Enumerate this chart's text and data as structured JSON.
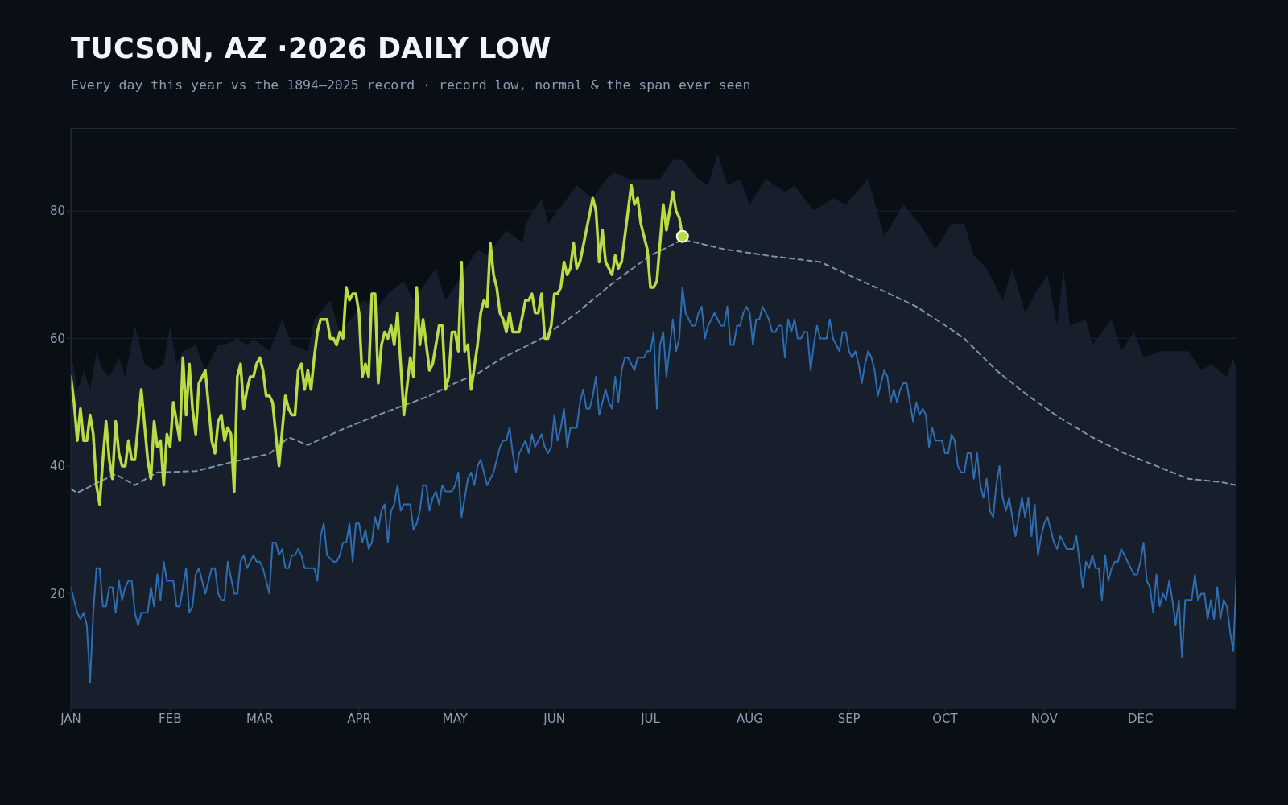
{
  "chart_data": {
    "type": "line",
    "title": "TUCSON, AZ ·2026 DAILY LOW",
    "subtitle": "Every day this year vs the 1894–2025 record · record low, normal & the span ever seen",
    "xlim": [
      "--01-01",
      "--12-31"
    ],
    "xticks": [
      {
        "value": "--01-01",
        "label": "JAN"
      },
      {
        "value": "--02-01",
        "label": "FEB"
      },
      {
        "value": "--03-01",
        "label": "MAR"
      },
      {
        "value": "--04-01",
        "label": "APR"
      },
      {
        "value": "--05-01",
        "label": "MAY"
      },
      {
        "value": "--06-01",
        "label": "JUN"
      },
      {
        "value": "--07-01",
        "label": "JUL"
      },
      {
        "value": "--08-01",
        "label": "AUG"
      },
      {
        "value": "--09-01",
        "label": "SEP"
      },
      {
        "value": "--10-01",
        "label": "OCT"
      },
      {
        "value": "--11-01",
        "label": "NOV"
      },
      {
        "value": "--12-01",
        "label": "DEC"
      }
    ],
    "ylim": [
      2,
      93
    ],
    "yticks": [
      20,
      40,
      60,
      80
    ],
    "grid": "y",
    "series": [
      {
        "type": "area",
        "color": "#161f2b",
        "x": [
          "--01-01",
          "--01-03",
          "--01-04",
          "--01-05",
          "--01-07",
          "--01-09",
          "--01-11",
          "--01-13",
          "--01-16",
          "--01-18",
          "--01-21",
          "--01-24",
          "--01-27",
          "--01-30",
          "--02-01",
          "--02-03",
          "--02-05",
          "--02-09",
          "--02-12",
          "--02-16",
          "--02-18",
          "--02-22",
          "--02-25",
          "--02-27",
          "--03-04",
          "--03-08",
          "--03-11",
          "--03-16",
          "--03-18",
          "--03-23",
          "--03-26",
          "--03-31",
          "--04-02",
          "--04-07",
          "--04-10",
          "--04-15",
          "--04-18",
          "--04-25",
          "--04-28",
          "--05-02",
          "--05-08",
          "--05-11",
          "--05-17",
          "--05-22",
          "--05-23",
          "--05-28",
          "--05-30",
          "--06-02",
          "--06-08",
          "--06-13",
          "--06-17",
          "--06-20",
          "--06-24",
          "--06-29",
          "--07-04",
          "--07-08",
          "--07-11",
          "--07-16",
          "--07-19",
          "--07-22",
          "--07-25",
          "--07-29",
          "--08-01",
          "--08-06",
          "--08-12",
          "--08-15",
          "--08-21",
          "--08-27",
          "--08-31",
          "--09-07",
          "--09-12",
          "--09-18",
          "--09-23",
          "--09-28",
          "--10-03",
          "--10-07",
          "--10-10",
          "--10-14",
          "--10-19",
          "--10-22",
          "--10-26",
          "--10-29",
          "--11-02",
          "--11-05",
          "--11-07",
          "--11-09",
          "--11-14",
          "--11-16",
          "--11-22",
          "--11-25",
          "--11-29",
          "--12-02",
          "--12-07",
          "--12-12",
          "--12-16",
          "--12-20",
          "--12-23",
          "--12-28",
          "--12-30",
          "--12-31"
        ],
        "values": [
          58,
          52,
          53,
          55,
          52,
          58,
          55,
          54,
          57,
          54,
          62,
          56,
          55,
          56,
          62,
          56,
          58,
          59,
          55,
          59,
          59,
          60,
          59,
          60,
          58,
          63,
          59,
          58,
          63,
          66,
          61,
          64,
          66,
          65,
          67,
          69,
          66,
          71,
          66,
          69,
          74,
          73,
          77,
          75,
          78,
          82,
          78,
          80,
          84,
          82,
          85,
          86,
          85,
          85,
          85,
          88,
          88,
          85,
          84,
          89,
          84,
          85,
          81,
          85,
          83,
          84,
          80,
          82,
          81,
          85,
          76,
          81,
          78,
          74,
          78,
          78,
          73,
          71,
          66,
          71,
          64,
          67,
          70,
          62,
          71,
          62,
          63,
          59,
          63,
          58,
          61,
          57,
          58,
          58,
          58,
          55,
          56,
          54,
          57,
          55
        ]
      },
      {
        "color": "#2f6db0",
        "x": [
          "--01-01",
          "--01-03",
          "--01-04",
          "--01-05",
          "--01-06",
          "--01-07",
          "--01-08",
          "--01-09",
          "--01-10",
          "--01-11",
          "--01-12",
          "--01-13",
          "--01-14",
          "--01-15",
          "--01-16",
          "--01-17",
          "--01-18",
          "--01-19",
          "--01-20",
          "--01-21",
          "--01-22",
          "--01-23",
          "--01-25",
          "--01-26",
          "--01-27",
          "--01-28",
          "--01-29",
          "--01-30",
          "--01-31",
          "--02-02",
          "--02-03",
          "--02-04",
          "--02-06",
          "--02-07",
          "--02-08",
          "--02-09",
          "--02-10",
          "--02-12",
          "--02-14",
          "--02-15",
          "--02-16",
          "--02-17",
          "--02-18",
          "--02-19",
          "--02-21",
          "--02-22",
          "--02-23",
          "--02-24",
          "--02-25",
          "--02-27",
          "--02-28",
          "--03-01",
          "--03-02",
          "--03-04",
          "--03-05",
          "--03-06",
          "--03-07",
          "--03-08",
          "--03-09",
          "--03-10",
          "--03-11",
          "--03-12",
          "--03-13",
          "--03-14",
          "--03-15",
          "--03-18",
          "--03-19",
          "--03-20",
          "--03-21",
          "--03-22",
          "--03-24",
          "--03-25",
          "--03-26",
          "--03-27",
          "--03-28",
          "--03-29",
          "--03-30",
          "--03-31",
          "--04-01",
          "--04-02",
          "--04-03",
          "--04-04",
          "--04-05",
          "--04-06",
          "--04-07",
          "--04-08",
          "--04-09",
          "--04-10",
          "--04-11",
          "--04-12",
          "--04-13",
          "--04-14",
          "--04-15",
          "--04-17",
          "--04-18",
          "--04-19",
          "--04-20",
          "--04-21",
          "--04-22",
          "--04-23",
          "--04-24",
          "--04-25",
          "--04-26",
          "--04-27",
          "--04-28",
          "--04-30",
          "--05-01",
          "--05-02",
          "--05-03",
          "--05-05",
          "--05-06",
          "--05-07",
          "--05-08",
          "--05-09",
          "--05-11",
          "--05-13",
          "--05-15",
          "--05-16",
          "--05-17",
          "--05-18",
          "--05-19",
          "--05-20",
          "--05-21",
          "--05-22",
          "--05-23",
          "--05-24",
          "--05-25",
          "--05-26",
          "--05-28",
          "--05-29",
          "--05-30",
          "--05-31",
          "--06-01",
          "--06-02",
          "--06-03",
          "--06-04",
          "--06-05",
          "--06-06",
          "--06-08",
          "--06-09",
          "--06-10",
          "--06-11",
          "--06-12",
          "--06-13",
          "--06-14",
          "--06-15",
          "--06-16",
          "--06-17",
          "--06-18",
          "--06-19",
          "--06-20",
          "--06-21",
          "--06-22",
          "--06-23",
          "--06-24",
          "--06-26",
          "--06-27",
          "--06-29",
          "--06-30",
          "--07-01",
          "--07-02",
          "--07-03",
          "--07-04",
          "--07-05",
          "--07-06",
          "--07-08",
          "--07-09",
          "--07-10",
          "--07-11",
          "--07-12",
          "--07-13",
          "--07-14",
          "--07-15",
          "--07-16",
          "--07-17",
          "--07-18",
          "--07-19",
          "--07-21",
          "--07-23",
          "--07-24",
          "--07-25",
          "--07-26",
          "--07-27",
          "--07-28",
          "--07-29",
          "--07-30",
          "--07-31",
          "--08-01",
          "--08-02",
          "--08-03",
          "--08-04",
          "--08-05",
          "--08-07",
          "--08-08",
          "--08-09",
          "--08-10",
          "--08-11",
          "--08-12",
          "--08-13",
          "--08-14",
          "--08-15",
          "--08-16",
          "--08-17",
          "--08-18",
          "--08-19",
          "--08-20",
          "--08-21",
          "--08-22",
          "--08-23",
          "--08-25",
          "--08-26",
          "--08-27",
          "--08-29",
          "--08-30",
          "--08-31",
          "--09-01",
          "--09-02",
          "--09-03",
          "--09-04",
          "--09-05",
          "--09-06",
          "--09-07",
          "--09-08",
          "--09-09",
          "--09-10",
          "--09-12",
          "--09-13",
          "--09-14",
          "--09-15",
          "--09-16",
          "--09-17",
          "--09-18",
          "--09-19",
          "--09-20",
          "--09-21",
          "--09-22",
          "--09-23",
          "--09-24",
          "--09-25",
          "--09-26",
          "--09-27",
          "--09-28",
          "--09-30",
          "--10-01",
          "--10-02",
          "--10-03",
          "--10-04",
          "--10-05",
          "--10-06",
          "--10-07",
          "--10-08",
          "--10-09",
          "--10-10",
          "--10-11",
          "--10-12",
          "--10-13",
          "--10-14",
          "--10-15",
          "--10-16",
          "--10-17",
          "--10-18",
          "--10-19",
          "--10-20",
          "--10-21",
          "--10-23",
          "--10-25",
          "--10-26",
          "--10-27",
          "--10-28",
          "--10-29",
          "--10-30",
          "--10-31",
          "--11-01",
          "--11-02",
          "--11-04",
          "--11-05",
          "--11-06",
          "--11-08",
          "--11-10",
          "--11-11",
          "--11-13",
          "--11-14",
          "--11-15",
          "--11-16",
          "--11-17",
          "--11-18",
          "--11-19",
          "--11-20",
          "--11-21",
          "--11-22",
          "--11-23",
          "--11-24",
          "--11-25",
          "--11-27",
          "--11-29",
          "--11-30",
          "--12-01",
          "--12-02",
          "--12-03",
          "--12-04",
          "--12-05",
          "--12-06",
          "--12-07",
          "--12-08",
          "--12-09",
          "--12-10",
          "--12-11",
          "--12-12",
          "--12-13",
          "--12-14",
          "--12-15",
          "--12-17",
          "--12-18",
          "--12-19",
          "--12-20",
          "--12-21",
          "--12-22",
          "--12-23",
          "--12-24",
          "--12-25",
          "--12-26",
          "--12-27",
          "--12-28",
          "--12-29",
          "--12-30",
          "--12-31"
        ],
        "values": [
          21,
          17,
          16,
          17,
          15,
          6,
          17,
          24,
          24,
          18,
          18,
          21,
          21,
          17,
          22,
          19,
          21,
          22,
          22,
          17,
          15,
          17,
          17,
          21,
          18,
          23,
          19,
          25,
          22,
          22,
          18,
          18,
          24,
          17,
          18,
          23,
          24,
          20,
          24,
          24,
          20,
          19,
          19,
          25,
          20,
          20,
          25,
          26,
          24,
          26,
          25,
          25,
          24,
          20,
          28,
          28,
          26,
          27,
          24,
          24,
          26,
          26,
          27,
          26,
          24,
          24,
          22,
          29,
          31,
          26,
          25,
          25,
          26,
          28,
          28,
          31,
          25,
          31,
          31,
          28,
          30,
          27,
          28,
          32,
          30,
          33,
          34,
          28,
          33,
          34,
          37,
          33,
          34,
          34,
          30,
          31,
          33,
          37,
          37,
          33,
          35,
          36,
          34,
          37,
          36,
          36,
          37,
          39,
          32,
          38,
          39,
          37,
          40,
          41,
          37,
          39,
          43,
          44,
          44,
          46,
          42,
          39,
          42,
          43,
          44,
          42,
          45,
          43,
          45,
          43,
          42,
          43,
          48,
          44,
          46,
          49,
          43,
          46,
          46,
          50,
          52,
          49,
          49,
          51,
          54,
          48,
          50,
          52,
          50,
          49,
          54,
          50,
          55,
          57,
          57,
          55,
          57,
          57,
          58,
          58,
          61,
          49,
          59,
          61,
          54,
          63,
          58,
          60,
          68,
          64,
          63,
          62,
          62,
          64,
          65,
          60,
          62,
          64,
          62,
          62,
          65,
          59,
          59,
          62,
          62,
          64,
          65,
          64,
          59,
          63,
          63,
          65,
          63,
          61,
          61,
          62,
          62,
          57,
          63,
          61,
          63,
          60,
          60,
          61,
          61,
          55,
          59,
          62,
          60,
          60,
          63,
          60,
          58,
          61,
          61,
          58,
          57,
          58,
          56,
          53,
          56,
          58,
          57,
          55,
          51,
          55,
          54,
          50,
          52,
          50,
          52,
          53,
          53,
          50,
          47,
          50,
          48,
          49,
          48,
          43,
          46,
          44,
          44,
          42,
          42,
          45,
          44,
          40,
          39,
          39,
          42,
          42,
          38,
          42,
          37,
          35,
          38,
          33,
          32,
          37,
          40,
          35,
          33,
          35,
          29,
          35,
          32,
          35,
          29,
          34,
          26,
          29,
          31,
          32,
          28,
          27,
          29,
          27,
          27,
          29,
          21,
          25,
          24,
          26,
          24,
          24,
          19,
          26,
          22,
          24,
          25,
          25,
          27,
          25,
          23,
          23,
          25,
          28,
          22,
          21,
          17,
          23,
          18,
          20,
          19,
          22,
          19,
          15,
          19,
          10,
          19,
          19,
          23,
          19,
          20,
          20,
          16,
          19,
          16,
          21,
          16,
          19,
          18,
          14,
          11,
          23
        ]
      },
      {
        "color": "#7f93aa",
        "line_style": "dashed",
        "x": [
          "--01-01",
          "--01-03",
          "--01-11",
          "--01-15",
          "--01-21",
          "--01-28",
          "--02-09",
          "--02-21",
          "--03-04",
          "--03-10",
          "--03-16",
          "--03-27",
          "--04-08",
          "--04-23",
          "--05-01",
          "--05-08",
          "--05-16",
          "--05-28",
          "--06-08",
          "--06-20",
          "--07-01",
          "--07-11",
          "--07-14",
          "--07-24",
          "--08-08",
          "--08-23",
          "--09-12",
          "--09-22",
          "--09-30",
          "--10-07",
          "--10-17",
          "--10-27",
          "--11-06",
          "--11-16",
          "--11-26",
          "--12-06",
          "--12-16",
          "--12-26",
          "--12-31"
        ],
        "values": [
          36.4,
          35.8,
          37.8,
          38.7,
          37,
          39,
          39.2,
          40.7,
          41.9,
          44.5,
          43.3,
          45.8,
          48.2,
          51,
          53,
          54.5,
          57,
          60,
          64,
          69,
          73,
          75.5,
          75.2,
          74,
          72.9,
          72,
          67.4,
          65,
          62.4,
          60,
          55,
          51,
          47.5,
          44.5,
          42,
          40,
          38,
          37.5,
          37
        ]
      },
      {
        "color": "#b8dc44",
        "x": [
          "--01-01",
          "--01-02",
          "--01-03",
          "--01-04",
          "--01-05",
          "--01-06",
          "--01-07",
          "--01-08",
          "--01-09",
          "--01-10",
          "--01-11",
          "--01-12",
          "--01-13",
          "--01-14",
          "--01-15",
          "--01-16",
          "--01-17",
          "--01-18",
          "--01-19",
          "--01-20",
          "--01-21",
          "--01-23",
          "--01-25",
          "--01-26",
          "--01-27",
          "--01-28",
          "--01-29",
          "--01-30",
          "--01-31",
          "--02-01",
          "--02-02",
          "--02-03",
          "--02-04",
          "--02-05",
          "--02-06",
          "--02-07",
          "--02-08",
          "--02-09",
          "--02-10",
          "--02-12",
          "--02-14",
          "--02-15",
          "--02-16",
          "--02-17",
          "--02-18",
          "--02-19",
          "--02-20",
          "--02-21",
          "--02-22",
          "--02-23",
          "--02-24",
          "--02-25",
          "--02-26",
          "--02-27",
          "--02-28",
          "--03-01",
          "--03-02",
          "--03-03",
          "--03-04",
          "--03-05",
          "--03-07",
          "--03-09",
          "--03-10",
          "--03-11",
          "--03-12",
          "--03-13",
          "--03-14",
          "--03-15",
          "--03-16",
          "--03-17",
          "--03-18",
          "--03-19",
          "--03-20",
          "--03-22",
          "--03-23",
          "--03-24",
          "--03-25",
          "--03-26",
          "--03-27",
          "--03-28",
          "--03-29",
          "--03-30",
          "--03-31",
          "--04-01",
          "--04-02",
          "--04-03",
          "--04-04",
          "--04-05",
          "--04-06",
          "--04-07",
          "--04-08",
          "--04-09",
          "--04-10",
          "--04-11",
          "--04-12",
          "--04-13",
          "--04-15",
          "--04-17",
          "--04-18",
          "--04-19",
          "--04-20",
          "--04-21",
          "--04-23",
          "--04-24",
          "--04-26",
          "--04-27",
          "--04-28",
          "--04-29",
          "--04-30",
          "--05-01",
          "--05-02",
          "--05-03",
          "--05-04",
          "--05-05",
          "--05-06",
          "--05-08",
          "--05-09",
          "--05-10",
          "--05-11",
          "--05-12",
          "--05-13",
          "--05-14",
          "--05-15",
          "--05-16",
          "--05-17",
          "--05-18",
          "--05-19",
          "--05-21",
          "--05-23",
          "--05-24",
          "--05-25",
          "--05-26",
          "--05-27",
          "--05-28",
          "--05-29",
          "--05-30",
          "--05-31",
          "--06-01",
          "--06-02",
          "--06-03",
          "--06-04",
          "--06-05",
          "--06-06",
          "--06-07",
          "--06-08",
          "--06-09",
          "--06-13",
          "--06-14",
          "--06-15",
          "--06-16",
          "--06-17",
          "--06-19",
          "--06-20",
          "--06-21",
          "--06-22",
          "--06-25",
          "--06-26",
          "--06-27",
          "--06-28",
          "--06-30",
          "--07-01",
          "--07-02",
          "--07-03",
          "--07-05",
          "--07-06",
          "--07-08",
          "--07-09",
          "--07-10",
          "--07-11"
        ],
        "values": [
          54,
          50,
          44,
          49,
          44,
          44,
          48,
          45,
          37,
          34,
          41,
          47,
          41,
          38,
          47,
          42,
          40,
          40,
          44,
          41,
          41,
          52,
          41,
          38,
          47,
          43,
          44,
          37,
          45,
          43,
          50,
          47,
          44,
          57,
          48,
          56,
          49,
          45,
          53,
          55,
          44,
          42,
          47,
          48,
          44,
          46,
          45,
          36,
          54,
          56,
          49,
          52,
          54,
          54,
          56,
          57,
          55,
          51,
          51,
          50,
          40,
          51,
          49,
          48,
          48,
          55,
          56,
          52,
          55,
          52,
          57,
          61,
          63,
          63,
          60,
          60,
          59,
          61,
          60,
          68,
          66,
          67,
          67,
          64,
          54,
          56,
          54,
          67,
          67,
          53,
          59,
          61,
          60,
          62,
          59,
          64,
          48,
          57,
          54,
          68,
          59,
          63,
          55,
          56,
          62,
          62,
          52,
          54,
          61,
          61,
          58,
          72,
          58,
          59,
          52,
          59,
          64,
          66,
          65,
          75,
          70,
          68,
          64,
          63,
          61,
          64,
          61,
          61,
          66,
          66,
          67,
          64,
          64,
          67,
          60,
          60,
          62,
          67,
          67,
          68,
          72,
          70,
          71,
          75,
          71,
          72,
          82,
          80,
          72,
          77,
          72,
          70,
          73,
          71,
          72,
          84,
          81,
          82,
          78,
          74,
          68,
          68,
          69,
          81,
          77,
          83,
          80,
          79,
          76
        ]
      }
    ]
  }
}
